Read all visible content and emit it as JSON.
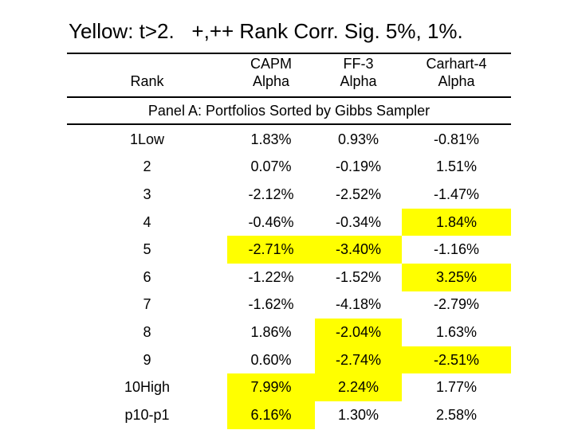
{
  "slide": {
    "title": "Yellow: t>2.   +,++ Rank Corr. Sig. 5%, 1%."
  },
  "colors": {
    "highlight": "#ffff00",
    "text": "#000000",
    "background": "#ffffff",
    "rule": "#000000"
  },
  "table": {
    "panel_label": "Panel A: Portfolios Sorted by Gibbs Sampler",
    "columns": [
      {
        "id": "rank",
        "line1": "",
        "line2": "Rank"
      },
      {
        "id": "capm-alpha",
        "line1": "CAPM",
        "line2": "Alpha"
      },
      {
        "id": "ff3-alpha",
        "line1": "FF-3",
        "line2": "Alpha"
      },
      {
        "id": "carhart4-alpha",
        "line1": "Carhart-4",
        "line2": "Alpha"
      }
    ],
    "rows": [
      {
        "rank": "1Low",
        "cells": [
          {
            "v": "1.83%",
            "h": false
          },
          {
            "v": "0.93%",
            "h": false
          },
          {
            "v": "-0.81%",
            "h": false
          }
        ]
      },
      {
        "rank": "2",
        "cells": [
          {
            "v": "0.07%",
            "h": false
          },
          {
            "v": "-0.19%",
            "h": false
          },
          {
            "v": "1.51%",
            "h": false
          }
        ]
      },
      {
        "rank": "3",
        "cells": [
          {
            "v": "-2.12%",
            "h": false
          },
          {
            "v": "-2.52%",
            "h": false
          },
          {
            "v": "-1.47%",
            "h": false
          }
        ]
      },
      {
        "rank": "4",
        "cells": [
          {
            "v": "-0.46%",
            "h": false
          },
          {
            "v": "-0.34%",
            "h": false
          },
          {
            "v": "1.84%",
            "h": true
          }
        ]
      },
      {
        "rank": "5",
        "cells": [
          {
            "v": "-2.71%",
            "h": true
          },
          {
            "v": "-3.40%",
            "h": true
          },
          {
            "v": "-1.16%",
            "h": false
          }
        ]
      },
      {
        "rank": "6",
        "cells": [
          {
            "v": "-1.22%",
            "h": false
          },
          {
            "v": "-1.52%",
            "h": false
          },
          {
            "v": "3.25%",
            "h": true
          }
        ]
      },
      {
        "rank": "7",
        "cells": [
          {
            "v": "-1.62%",
            "h": false
          },
          {
            "v": "-4.18%",
            "h": false
          },
          {
            "v": "-2.79%",
            "h": false
          }
        ]
      },
      {
        "rank": "8",
        "cells": [
          {
            "v": "1.86%",
            "h": false
          },
          {
            "v": "-2.04%",
            "h": true
          },
          {
            "v": "1.63%",
            "h": false
          }
        ]
      },
      {
        "rank": "9",
        "cells": [
          {
            "v": "0.60%",
            "h": false
          },
          {
            "v": "-2.74%",
            "h": true
          },
          {
            "v": "-2.51%",
            "h": true
          }
        ]
      },
      {
        "rank": "10High",
        "cells": [
          {
            "v": "7.99%",
            "h": true
          },
          {
            "v": "2.24%",
            "h": true
          },
          {
            "v": "1.77%",
            "h": false
          }
        ]
      },
      {
        "rank": "p10-p1",
        "cells": [
          {
            "v": "6.16%",
            "h": true
          },
          {
            "v": "1.30%",
            "h": false
          },
          {
            "v": "2.58%",
            "h": false
          }
        ]
      }
    ]
  }
}
